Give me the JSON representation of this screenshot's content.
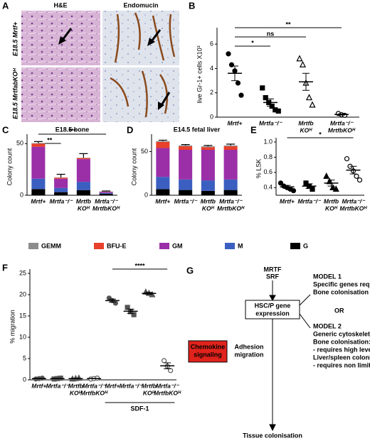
{
  "panel_a": {
    "letter": "A",
    "column_titles": [
      "H&E",
      "Endomucin"
    ],
    "row_labels": [
      "E18.5 Mrtf+",
      "E18.5 MrtfabKOᴴ"
    ]
  },
  "chart_data": [
    {
      "type": "dot",
      "panel": "B",
      "ylabel": "live Gr-1+ cells X10³",
      "ylim": [
        0,
        7
      ],
      "yticks": [
        0,
        2,
        4,
        6
      ],
      "marker_color": "#000",
      "categories": [
        [
          "Mrtf+"
        ],
        [
          "Mrtfa⁻/⁻"
        ],
        [
          "Mrtfb",
          "KOᴴ"
        ],
        [
          "Mrtfa⁻/⁻",
          "MrtfbKOᴴ"
        ]
      ],
      "groups": [
        {
          "marker": "circle",
          "filled": true,
          "points": [
            5.2,
            4.3,
            3.8,
            2.8,
            1.8
          ],
          "mean": 3.6,
          "sem": 0.6
        },
        {
          "marker": "square",
          "filled": true,
          "points": [
            2.4,
            1.6,
            1.2,
            0.9,
            0.6,
            0.5
          ],
          "mean": 1.2,
          "sem": 0.3
        },
        {
          "marker": "triangle",
          "filled": false,
          "points": [
            4.8,
            4.3,
            2.8,
            1.6,
            1.0
          ],
          "mean": 2.9,
          "sem": 0.7
        },
        {
          "marker": "circle",
          "filled": false,
          "points": [
            0.3,
            0.2,
            0.15
          ],
          "mean": 0.22,
          "sem": 0.05
        }
      ],
      "significance": [
        {
          "from": 0,
          "to": 3,
          "label": "**"
        },
        {
          "from": 0,
          "to": 2,
          "label": "ns"
        },
        {
          "from": 0,
          "to": 1,
          "label": "*"
        }
      ]
    },
    {
      "type": "stacked_bar",
      "panel": "C",
      "title": "E18.5 bone",
      "ylabel": "Colony count",
      "ylim": [
        0,
        55
      ],
      "yticks": [
        0,
        50
      ],
      "categories": [
        [
          "Mrtf+"
        ],
        [
          "Mrtfa⁻/⁻"
        ],
        [
          "Mrtfb",
          "KOᴴ"
        ],
        [
          "Mrtfa⁻/⁻",
          "MrtfbKOᴴ"
        ]
      ],
      "series": [
        {
          "name": "G",
          "color": "#000000",
          "values": [
            6,
            3,
            5,
            1.5
          ]
        },
        {
          "name": "M",
          "color": "#3b5fc0",
          "values": [
            10,
            4,
            8,
            0.8
          ]
        },
        {
          "name": "GM",
          "color": "#9b2fa8",
          "values": [
            31,
            9,
            22,
            1
          ]
        },
        {
          "name": "BFU-E",
          "color": "#e8402a",
          "values": [
            3,
            1,
            1,
            0.2
          ]
        },
        {
          "name": "GEMM",
          "color": "#8c8c8c",
          "values": [
            0.5,
            0.3,
            0.3,
            0.1
          ]
        }
      ],
      "errors": [
        1.5,
        3,
        4,
        0.5
      ],
      "significance": [
        {
          "from": 0,
          "to": 3,
          "label": "***"
        },
        {
          "from": 0,
          "to": 1,
          "label": "**"
        }
      ]
    },
    {
      "type": "stacked_bar",
      "panel": "D",
      "title": "E14.5 fetal liver",
      "ylabel": "Colony count",
      "ylim": [
        0,
        65
      ],
      "yticks": [
        0,
        50
      ],
      "categories": [
        [
          "Mrtf+"
        ],
        [
          "Mrtfa⁻/⁻"
        ],
        [
          "Mrtfb",
          "KOᴴ"
        ],
        [
          "Mrtfa⁻/⁻",
          "MrtfbKOᴴ"
        ]
      ],
      "series": [
        {
          "name": "G",
          "color": "#000000",
          "values": [
            7,
            6,
            5,
            6
          ]
        },
        {
          "name": "M",
          "color": "#3b5fc0",
          "values": [
            14,
            12,
            12,
            12
          ]
        },
        {
          "name": "GM",
          "color": "#9b2fa8",
          "values": [
            33,
            34,
            35,
            34
          ]
        },
        {
          "name": "BFU-E",
          "color": "#e8402a",
          "values": [
            7,
            4,
            3,
            4
          ]
        },
        {
          "name": "GEMM",
          "color": "#8c8c8c",
          "values": [
            1,
            1,
            1,
            1
          ]
        }
      ],
      "errors": [
        1,
        1,
        1,
        1.5
      ],
      "significance": []
    },
    {
      "type": "dot",
      "panel": "E",
      "ylabel": "% LSK",
      "ylim": [
        0.3,
        1.0
      ],
      "yticks": [
        0.4,
        0.6,
        0.8,
        {
          "value": 1,
          "label": "1.0"
        }
      ],
      "marker_color": "#000",
      "categories": [
        [
          "Mrtf+"
        ],
        [
          "Mrtfa⁻/⁻"
        ],
        [
          "Mrtfb",
          "KOᴴ"
        ],
        [
          "Mrtfa⁻/⁻",
          "MrtfbKOᴴ"
        ]
      ],
      "groups": [
        {
          "marker": "circle",
          "filled": true,
          "points": [
            0.46,
            0.42,
            0.4,
            0.38,
            0.36
          ],
          "mean": 0.41,
          "sem": 0.02
        },
        {
          "marker": "square",
          "filled": true,
          "points": [
            0.46,
            0.42,
            0.38
          ],
          "mean": 0.42,
          "sem": 0.03
        },
        {
          "marker": "triangle",
          "filled": true,
          "points": [
            0.55,
            0.48,
            0.4,
            0.38
          ],
          "mean": 0.46,
          "sem": 0.04
        },
        {
          "marker": "circle",
          "filled": false,
          "points": [
            0.78,
            0.68,
            0.62,
            0.55,
            0.5
          ],
          "mean": 0.63,
          "sem": 0.05
        }
      ],
      "significance": [
        {
          "from": 0,
          "to": 3,
          "label": "*"
        }
      ]
    },
    {
      "type": "dot",
      "panel": "F",
      "ylabel": "% migration",
      "ylim": [
        0,
        25
      ],
      "yticks": [
        0,
        5,
        10,
        15,
        20,
        25
      ],
      "marker_color": "#555",
      "categories": [
        [
          "Mrtf+"
        ],
        [
          "Mrtfa⁻/⁻"
        ],
        [
          "Mrtfb",
          "KOᴴ"
        ],
        [
          "Mrtfa⁻/⁻",
          "MrtfbKOᴴ"
        ],
        [
          "Mrtf+"
        ],
        [
          "Mrtfa⁻/⁻"
        ],
        [
          "Mrtfb",
          "KOᴴ"
        ],
        [
          "Mrtfa⁻/⁻",
          "MrtfbKOᴴ"
        ]
      ],
      "groups": [
        {
          "marker": "circle",
          "filled": true,
          "points": [
            0.2,
            0.3,
            0.4
          ],
          "mean": 0.3,
          "sem": 0.05
        },
        {
          "marker": "square",
          "filled": true,
          "points": [
            0.2,
            0.3,
            0.4
          ],
          "mean": 0.3,
          "sem": 0.05
        },
        {
          "marker": "triangle",
          "filled": true,
          "points": [
            0.2,
            0.3,
            0.4
          ],
          "mean": 0.3,
          "sem": 0.05
        },
        {
          "marker": "circle",
          "filled": false,
          "points": [
            0.2,
            0.3,
            0.4
          ],
          "mean": 0.3,
          "sem": 0.05
        },
        {
          "marker": "circle",
          "filled": true,
          "points": [
            19.2,
            18.6,
            18.0
          ],
          "mean": 18.6,
          "sem": 0.35
        },
        {
          "marker": "square",
          "filled": true,
          "points": [
            17,
            16,
            15.3
          ],
          "mean": 16.1,
          "sem": 0.5
        },
        {
          "marker": "triangle",
          "filled": true,
          "points": [
            20.6,
            20.3,
            20.0
          ],
          "mean": 20.3,
          "sem": 0.2
        },
        {
          "marker": "circle",
          "filled": false,
          "points": [
            4.5,
            3.2,
            2.2
          ],
          "mean": 3.3,
          "sem": 0.7
        }
      ],
      "significance": [
        {
          "from": 4,
          "to": 7,
          "label": "****"
        }
      ],
      "group_label": {
        "from": 4,
        "to": 7,
        "label": "SDF-1"
      }
    }
  ],
  "panel_g": {
    "letter": "G",
    "top": [
      "MRTF",
      "SRF"
    ],
    "box": [
      "HSC/P gene",
      "expression"
    ],
    "model1": [
      "MODEL 1",
      "Specific genes required for",
      "Bone colonisation"
    ],
    "or": "OR",
    "model2": [
      "MODEL 2",
      "Generic cytoskeletal genes"
    ],
    "bone": "Bone colonisation:",
    "bone_req": "- requires high levels",
    "liver": "Liver/spleen colonisation:",
    "liver_req": "- requires non limiting levels",
    "chemokine": [
      "Chemokine",
      "signaling"
    ],
    "adhesion": [
      "Adhesion",
      "migration"
    ],
    "bottom": "Tissue colonisation"
  }
}
